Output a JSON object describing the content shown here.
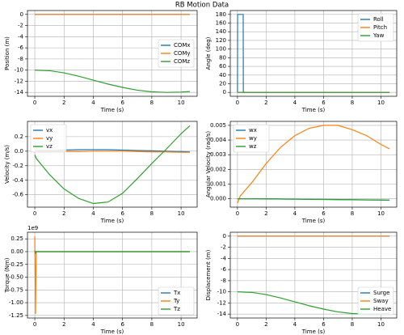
{
  "title": "RB Motion Data",
  "chart_data": [
    {
      "type": "line",
      "xlabel": "Time (s)",
      "ylabel": "Position (m)",
      "xlim": [
        -0.5,
        11.1
      ],
      "ylim": [
        -14.7,
        0.7
      ],
      "xticks": [
        0,
        2,
        4,
        6,
        8,
        10
      ],
      "yticks": [
        0,
        -2,
        -4,
        -6,
        -8,
        -10,
        -12,
        -14
      ],
      "grid": true,
      "legend": "center right",
      "x": [
        0,
        1,
        2,
        3,
        4,
        5,
        6,
        7,
        8,
        9,
        10,
        10.6
      ],
      "series": [
        {
          "name": "COMx",
          "color": "#1f77b4",
          "values": [
            0,
            0,
            0,
            0,
            0,
            0,
            0,
            0,
            0,
            0,
            0,
            0
          ]
        },
        {
          "name": "COMy",
          "color": "#ff7f0e",
          "values": [
            0,
            0,
            0,
            0,
            0,
            0,
            0,
            0,
            0,
            0,
            0,
            0
          ]
        },
        {
          "name": "COMz",
          "color": "#2ca02c",
          "values": [
            -10,
            -10.1,
            -10.5,
            -11.1,
            -11.8,
            -12.5,
            -13.1,
            -13.6,
            -13.9,
            -14,
            -13.95,
            -13.85
          ]
        }
      ]
    },
    {
      "type": "line",
      "xlabel": "Time (s)",
      "ylabel": "Angle (deg)",
      "xlim": [
        -0.5,
        11.1
      ],
      "ylim": [
        -9,
        189
      ],
      "xticks": [
        0,
        2,
        4,
        6,
        8,
        10
      ],
      "yticks": [
        0,
        20,
        40,
        60,
        80,
        100,
        120,
        140,
        160,
        180
      ],
      "grid": true,
      "legend": "upper right",
      "series": [
        {
          "name": "Roll",
          "color": "#1f77b4",
          "x": [
            0,
            0.01,
            0.4,
            0.41,
            10.6
          ],
          "values": [
            0,
            180,
            180,
            0,
            0
          ]
        },
        {
          "name": "Pitch",
          "color": "#ff7f0e",
          "x": [
            0,
            10.6
          ],
          "values": [
            0,
            0
          ]
        },
        {
          "name": "Yaw",
          "color": "#2ca02c",
          "x": [
            0,
            10.6
          ],
          "values": [
            0,
            0
          ]
        }
      ]
    },
    {
      "type": "line",
      "xlabel": "Time (s)",
      "ylabel": "Velocity (m/s)",
      "xlim": [
        -0.5,
        11.1
      ],
      "ylim": [
        -0.77,
        0.41
      ],
      "xticks": [
        0,
        2,
        4,
        6,
        8,
        10
      ],
      "yticks": [
        -0.6,
        -0.4,
        -0.2,
        {
          "value": 0,
          "label": "0.0"
        },
        0.2
      ],
      "grid": true,
      "legend": "upper left",
      "x": [
        0,
        0.1,
        1,
        2,
        3,
        4,
        5,
        6,
        7,
        8,
        9,
        10,
        10.6
      ],
      "series": [
        {
          "name": "vx",
          "color": "#1f77b4",
          "values": [
            0,
            0.01,
            0.01,
            0.015,
            0.02,
            0.02,
            0.02,
            0.015,
            0.01,
            0.005,
            0,
            -0.005,
            -0.01
          ]
        },
        {
          "name": "vy",
          "color": "#ff7f0e",
          "values": [
            0,
            0,
            -0.005,
            -0.005,
            -0.005,
            0,
            0,
            0,
            -0.005,
            -0.01,
            -0.01,
            -0.015,
            -0.015
          ]
        },
        {
          "name": "vz",
          "color": "#2ca02c",
          "values": [
            -0.05,
            -0.1,
            -0.32,
            -0.52,
            -0.65,
            -0.72,
            -0.7,
            -0.58,
            -0.38,
            -0.17,
            0.03,
            0.24,
            0.35
          ]
        }
      ]
    },
    {
      "type": "line",
      "xlabel": "Time (s)",
      "ylabel": "Angular Velocity (rad/s)",
      "xlim": [
        -0.5,
        11.1
      ],
      "ylim": [
        -0.00057,
        0.00527
      ],
      "xticks": [
        0,
        2,
        4,
        6,
        8,
        10
      ],
      "yticks": [
        {
          "value": 0,
          "label": "0.000"
        },
        0.001,
        0.002,
        0.003,
        0.004,
        0.005
      ],
      "grid": true,
      "legend": "upper left",
      "x": [
        0,
        0.2,
        1,
        2,
        3,
        4,
        5,
        6,
        7,
        8,
        9,
        10,
        10.6
      ],
      "series": [
        {
          "name": "wx",
          "color": "#1f77b4",
          "values": [
            0,
            0,
            0,
            0,
            -1e-05,
            -2e-05,
            -3e-05,
            -4e-05,
            -5e-05,
            -6e-05,
            -7e-05,
            -8e-05,
            -9e-05
          ]
        },
        {
          "name": "wy",
          "color": "#ff7f0e",
          "values": [
            -0.0003,
            0.0002,
            0.0011,
            0.0024,
            0.0035,
            0.0043,
            0.0048,
            0.005,
            0.005,
            0.0047,
            0.0043,
            0.0037,
            0.0034
          ]
        },
        {
          "name": "wz",
          "color": "#2ca02c",
          "values": [
            0,
            0,
            0,
            -1e-05,
            -2e-05,
            -3e-05,
            -4e-05,
            -5e-05,
            -6e-05,
            -7e-05,
            -8e-05,
            -9e-05,
            -0.0001
          ]
        }
      ]
    },
    {
      "type": "line",
      "xlabel": "Time (s)",
      "ylabel": "Torque (Nm)",
      "offset_text": "1e9",
      "xlim": [
        -0.5,
        11.1
      ],
      "ylim": [
        -1.3,
        0.38
      ],
      "xticks": [
        0,
        2,
        4,
        6,
        8,
        10
      ],
      "yticks": [
        -1.25,
        {
          "value": -1,
          "label": "-1.00"
        },
        -0.75,
        {
          "value": -0.5,
          "label": "-0.50"
        },
        -0.25,
        {
          "value": 0,
          "label": "0.00"
        },
        0.25
      ],
      "grid": true,
      "legend": "lower right",
      "series": [
        {
          "name": "Tx",
          "color": "#1f77b4",
          "x": [
            0,
            10.6
          ],
          "values": [
            0,
            0
          ]
        },
        {
          "name": "Ty",
          "color": "#ff7f0e",
          "x": [
            0,
            0.05,
            0.1,
            10.6
          ],
          "values": [
            0.3,
            -1.22,
            0,
            0
          ]
        },
        {
          "name": "Tz",
          "color": "#2ca02c",
          "x": [
            0,
            0.05,
            0.1,
            10.6
          ],
          "values": [
            0.02,
            -0.03,
            0,
            0
          ]
        }
      ]
    },
    {
      "type": "line",
      "xlabel": "Time (s)",
      "ylabel": "Displacement (m)",
      "xlim": [
        -0.5,
        11.1
      ],
      "ylim": [
        -14.7,
        0.7
      ],
      "xticks": [
        0,
        2,
        4,
        6,
        8,
        10
      ],
      "yticks": [
        0,
        -2,
        -4,
        -6,
        -8,
        -10,
        -12,
        -14
      ],
      "grid": true,
      "legend": "lower right",
      "x": [
        0,
        1,
        2,
        3,
        4,
        5,
        6,
        7,
        8,
        9,
        10,
        10.6
      ],
      "series": [
        {
          "name": "Surge",
          "color": "#1f77b4",
          "values": [
            0,
            0,
            0,
            0,
            0,
            0,
            0,
            0,
            0,
            0,
            0,
            0
          ]
        },
        {
          "name": "Sway",
          "color": "#ff7f0e",
          "values": [
            0,
            0,
            0,
            0,
            0,
            0,
            0,
            0,
            0,
            0,
            0,
            0
          ]
        },
        {
          "name": "Heave",
          "color": "#2ca02c",
          "values": [
            -10,
            -10.1,
            -10.5,
            -11.1,
            -11.8,
            -12.5,
            -13.1,
            -13.6,
            -13.9,
            -14,
            -13.95,
            -13.85
          ]
        }
      ]
    }
  ]
}
